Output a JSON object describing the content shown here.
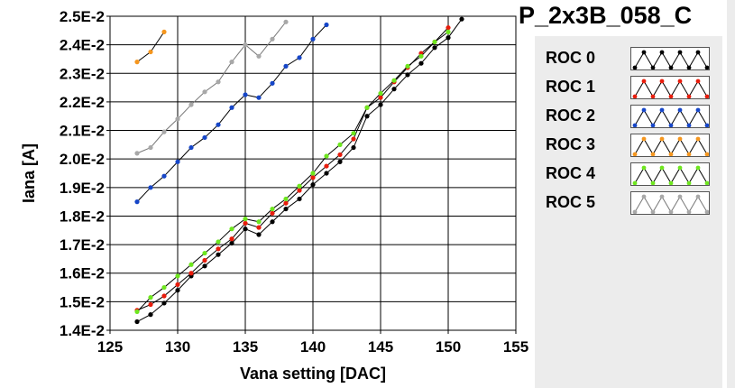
{
  "panel": {
    "title": "P_2x3B_058_C"
  },
  "legend": [
    {
      "label": "ROC 0",
      "color": "#000000"
    },
    {
      "label": "ROC 1",
      "color": "#e81c0c"
    },
    {
      "label": "ROC 2",
      "color": "#1646c8"
    },
    {
      "label": "ROC 3",
      "color": "#f5961e"
    },
    {
      "label": "ROC 4",
      "color": "#6ee61e"
    },
    {
      "label": "ROC 5",
      "color": "#a8a8a8"
    }
  ],
  "chart_data": {
    "type": "line",
    "title": "",
    "xlabel": "Vana setting [DAC]",
    "ylabel": "Iana [A]",
    "xlim": [
      125,
      155
    ],
    "ylim": [
      0.014,
      0.025
    ],
    "xticks": [
      "125",
      "130",
      "135",
      "140",
      "145",
      "150",
      "155"
    ],
    "yticks": [
      "1.4E-2",
      "1.5E-2",
      "1.6E-2",
      "1.7E-2",
      "1.8E-2",
      "1.9E-2",
      "2.0E-2",
      "2.1E-2",
      "2.2E-2",
      "2.3E-2",
      "2.4E-2",
      "2.5E-2"
    ],
    "grid": true,
    "series": [
      {
        "name": "ROC 0",
        "color": "#000000",
        "x": [
          127,
          128,
          129,
          130,
          131,
          132,
          133,
          134,
          135,
          136,
          137,
          138,
          139,
          140,
          141,
          142,
          143,
          144,
          145,
          146,
          147,
          148,
          149,
          150,
          151
        ],
        "y": [
          0.0143,
          0.01455,
          0.01495,
          0.0154,
          0.0159,
          0.01625,
          0.01665,
          0.01705,
          0.01755,
          0.01735,
          0.0178,
          0.01825,
          0.0186,
          0.0191,
          0.0195,
          0.0199,
          0.0204,
          0.0215,
          0.0219,
          0.02245,
          0.02295,
          0.02335,
          0.0239,
          0.02425,
          0.0249
        ]
      },
      {
        "name": "ROC 1",
        "color": "#e81c0c",
        "x": [
          127,
          128,
          129,
          130,
          131,
          132,
          133,
          134,
          135,
          136,
          137,
          138,
          139,
          140,
          141,
          142,
          143,
          144,
          145,
          146,
          147,
          148,
          149,
          150
        ],
        "y": [
          0.0147,
          0.0149,
          0.0152,
          0.0156,
          0.016,
          0.01645,
          0.01685,
          0.0172,
          0.01775,
          0.0176,
          0.0181,
          0.01845,
          0.0189,
          0.01935,
          0.01975,
          0.02015,
          0.0207,
          0.0218,
          0.02215,
          0.0227,
          0.0232,
          0.0237,
          0.0241,
          0.0246
        ]
      },
      {
        "name": "ROC 2",
        "color": "#1646c8",
        "x": [
          127,
          128,
          129,
          130,
          131,
          132,
          133,
          134,
          135,
          136,
          137,
          138,
          139,
          140,
          141
        ],
        "y": [
          0.0185,
          0.019,
          0.0194,
          0.0199,
          0.0204,
          0.02075,
          0.0212,
          0.0218,
          0.02225,
          0.02215,
          0.02265,
          0.02325,
          0.02355,
          0.0242,
          0.0247
        ]
      },
      {
        "name": "ROC 3",
        "color": "#f5961e",
        "x": [
          127,
          128,
          129
        ],
        "y": [
          0.0234,
          0.02375,
          0.02445
        ]
      },
      {
        "name": "ROC 4",
        "color": "#6ee61e",
        "x": [
          127,
          128,
          129,
          130,
          131,
          132,
          133,
          134,
          135,
          136,
          137,
          138,
          139,
          140,
          141,
          142,
          143,
          144,
          145,
          146,
          147,
          148,
          149,
          150
        ],
        "y": [
          0.01465,
          0.01515,
          0.0155,
          0.0159,
          0.0163,
          0.0167,
          0.0171,
          0.01755,
          0.0179,
          0.0178,
          0.01825,
          0.0186,
          0.01905,
          0.0195,
          0.0201,
          0.0205,
          0.0209,
          0.0218,
          0.0223,
          0.02275,
          0.02325,
          0.0236,
          0.0241,
          0.02445
        ]
      },
      {
        "name": "ROC 5",
        "color": "#a8a8a8",
        "x": [
          127,
          128,
          129,
          130,
          131,
          132,
          133,
          134,
          135,
          136,
          137,
          138
        ],
        "y": [
          0.0202,
          0.0204,
          0.02095,
          0.0214,
          0.0219,
          0.02235,
          0.0227,
          0.0234,
          0.024,
          0.0236,
          0.0242,
          0.0248
        ]
      }
    ]
  }
}
